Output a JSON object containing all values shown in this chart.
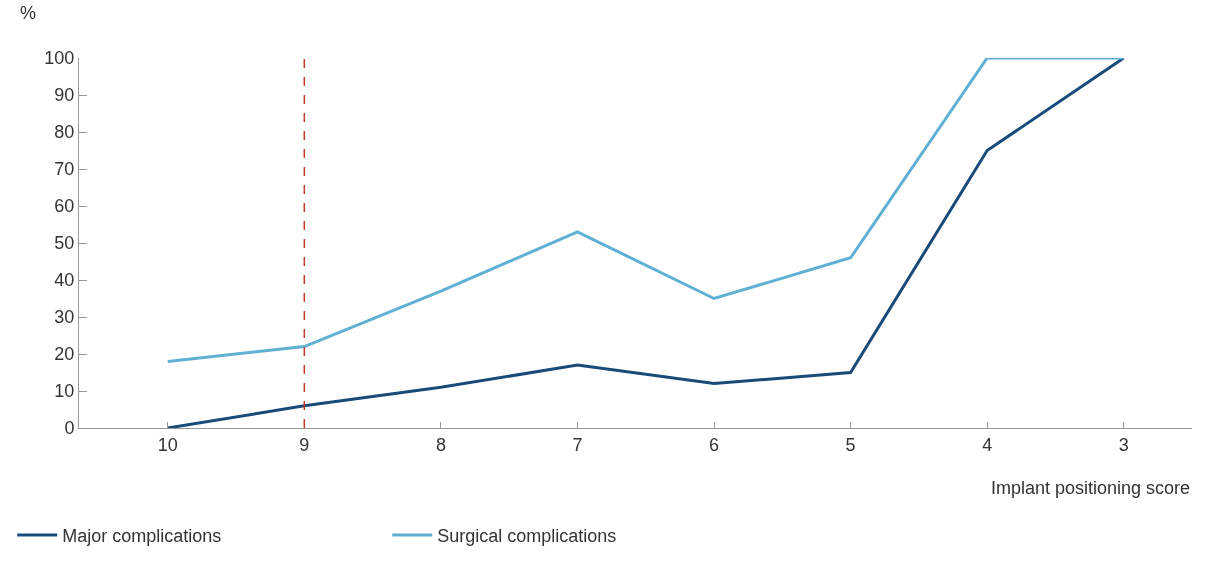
{
  "chart_data": {
    "type": "line",
    "xlabel": "Implant positioning score",
    "ylabel": "%",
    "categories": [
      "10",
      "9",
      "8",
      "7",
      "6",
      "5",
      "4",
      "3"
    ],
    "series": [
      {
        "name": "Major complications",
        "color": "#1a4a7a",
        "values": [
          0,
          6,
          11,
          17,
          12,
          15,
          75,
          100
        ]
      },
      {
        "name": "Surgical complications",
        "color": "#5fb0d4",
        "values": [
          18,
          22,
          37,
          53,
          35,
          46,
          100,
          100
        ]
      }
    ],
    "ylim": [
      0,
      100
    ],
    "yticks": [
      0,
      10,
      20,
      30,
      40,
      50,
      60,
      70,
      80,
      90,
      100
    ],
    "ref_lines": [
      {
        "axis": "x",
        "value": "9",
        "color": "#c0392b",
        "line_style": "dashed"
      }
    ],
    "legend": "bottom left",
    "marker": "none",
    "line_style": "solid"
  }
}
